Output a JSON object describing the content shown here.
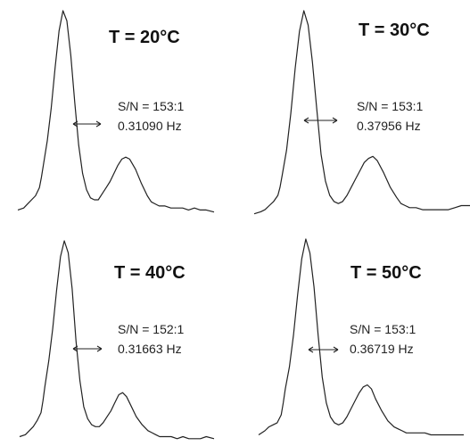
{
  "chart_data": [
    {
      "type": "line",
      "title": "T = 20°C",
      "annotations": [
        "S/N = 153:1",
        "0.31090 Hz"
      ],
      "series": [
        {
          "x": [
            0,
            3,
            5,
            7,
            9,
            11,
            12,
            13,
            15,
            17,
            19,
            21,
            23,
            25,
            27,
            29,
            31,
            33,
            35,
            37,
            39,
            41,
            43,
            45,
            47,
            49,
            51,
            53,
            55,
            57,
            60,
            63,
            66,
            68,
            70,
            72,
            75,
            78,
            81,
            84,
            87,
            90,
            93,
            96,
            100
          ],
          "y": [
            0.02,
            0.03,
            0.05,
            0.07,
            0.09,
            0.13,
            0.18,
            0.24,
            0.36,
            0.52,
            0.72,
            0.9,
            1.0,
            0.95,
            0.78,
            0.55,
            0.34,
            0.2,
            0.12,
            0.08,
            0.07,
            0.07,
            0.1,
            0.13,
            0.16,
            0.2,
            0.24,
            0.27,
            0.28,
            0.27,
            0.22,
            0.15,
            0.09,
            0.06,
            0.05,
            0.04,
            0.04,
            0.03,
            0.03,
            0.03,
            0.02,
            0.03,
            0.02,
            0.02,
            0.01
          ]
        }
      ]
    },
    {
      "type": "line",
      "title": "T = 30°C",
      "annotations": [
        "S/N = 153:1",
        "0.37956 Hz"
      ],
      "series": [
        {
          "x": [
            0,
            3,
            5,
            7,
            9,
            11,
            12,
            13,
            15,
            17,
            19,
            21,
            23,
            25,
            27,
            29,
            31,
            33,
            35,
            37,
            39,
            41,
            43,
            45,
            47,
            49,
            51,
            53,
            55,
            57,
            60,
            63,
            66,
            68,
            70,
            72,
            75,
            78,
            81,
            84,
            87,
            90,
            93,
            96,
            100
          ],
          "y": [
            0.01,
            0.02,
            0.03,
            0.05,
            0.07,
            0.1,
            0.14,
            0.2,
            0.32,
            0.5,
            0.72,
            0.9,
            1.0,
            0.93,
            0.75,
            0.52,
            0.3,
            0.17,
            0.1,
            0.07,
            0.06,
            0.07,
            0.1,
            0.14,
            0.18,
            0.22,
            0.26,
            0.28,
            0.29,
            0.27,
            0.21,
            0.14,
            0.09,
            0.06,
            0.05,
            0.04,
            0.04,
            0.03,
            0.03,
            0.03,
            0.03,
            0.03,
            0.04,
            0.05,
            0.05
          ]
        }
      ]
    },
    {
      "type": "line",
      "title": "T = 40°C",
      "annotations": [
        "S/N = 152:1",
        "0.31663 Hz"
      ],
      "series": [
        {
          "x": [
            0,
            3,
            5,
            7,
            9,
            11,
            12,
            13,
            15,
            17,
            19,
            21,
            23,
            25,
            27,
            29,
            31,
            33,
            35,
            37,
            39,
            41,
            43,
            45,
            47,
            49,
            51,
            53,
            55,
            57,
            60,
            63,
            66,
            68,
            70,
            72,
            75,
            78,
            81,
            84,
            87,
            90,
            93,
            96,
            100
          ],
          "y": [
            0.02,
            0.03,
            0.05,
            0.07,
            0.1,
            0.14,
            0.2,
            0.27,
            0.4,
            0.56,
            0.75,
            0.92,
            1.0,
            0.94,
            0.76,
            0.5,
            0.3,
            0.17,
            0.11,
            0.08,
            0.07,
            0.07,
            0.09,
            0.12,
            0.15,
            0.19,
            0.23,
            0.24,
            0.22,
            0.18,
            0.12,
            0.08,
            0.05,
            0.04,
            0.03,
            0.02,
            0.02,
            0.02,
            0.01,
            0.02,
            0.01,
            0.01,
            0.01,
            0.02,
            0.01
          ]
        }
      ]
    },
    {
      "type": "line",
      "title": "T = 50°C",
      "annotations": [
        "S/N = 153:1",
        "0.36719 Hz"
      ],
      "series": [
        {
          "x": [
            0,
            3,
            5,
            7,
            9,
            11,
            12,
            13,
            15,
            17,
            19,
            21,
            23,
            25,
            27,
            29,
            31,
            33,
            35,
            37,
            39,
            41,
            43,
            45,
            47,
            49,
            51,
            53,
            55,
            57,
            60,
            63,
            66,
            68,
            70,
            72,
            75,
            78,
            81,
            84,
            87,
            90,
            93,
            96,
            100
          ],
          "y": [
            0.02,
            0.04,
            0.06,
            0.07,
            0.08,
            0.12,
            0.18,
            0.25,
            0.36,
            0.52,
            0.72,
            0.9,
            1.0,
            0.93,
            0.76,
            0.52,
            0.31,
            0.18,
            0.11,
            0.08,
            0.07,
            0.08,
            0.11,
            0.15,
            0.19,
            0.23,
            0.26,
            0.27,
            0.25,
            0.2,
            0.14,
            0.09,
            0.06,
            0.05,
            0.04,
            0.03,
            0.03,
            0.03,
            0.03,
            0.02,
            0.02,
            0.02,
            0.02,
            0.02,
            0.02
          ]
        }
      ]
    }
  ]
}
